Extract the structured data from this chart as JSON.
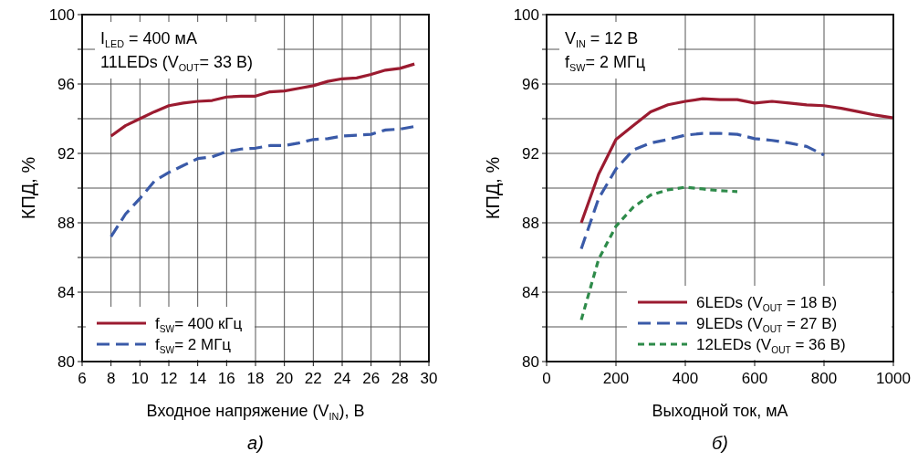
{
  "chart_data": [
    {
      "type": "line",
      "xlabel": "Входное напряжение (V$_{IN}$), В",
      "ylabel": "КПД, %",
      "annotations": [
        "I$_{LED}$ = 400 мА",
        "11LEDs (V$_{OUT}$= 33 В)",
        "а)"
      ],
      "xlim": [
        6,
        30
      ],
      "xticks": [
        6,
        8,
        10,
        12,
        14,
        16,
        18,
        20,
        22,
        24,
        26,
        28,
        30
      ],
      "ylim": [
        80,
        100
      ],
      "yticks": [
        80,
        {
          "value": 82,
          "label": null
        },
        84,
        {
          "value": 86,
          "label": null
        },
        88,
        {
          "value": 90,
          "label": null
        },
        92,
        {
          "value": 94,
          "label": null
        },
        96,
        {
          "value": 98,
          "label": null
        },
        100
      ],
      "grid": true,
      "legend": "bottom left",
      "x": [
        8,
        9,
        10,
        11,
        12,
        13,
        14,
        15,
        16,
        17,
        18,
        19,
        20,
        21,
        22,
        23,
        24,
        25,
        26,
        27,
        28,
        29
      ],
      "series": [
        {
          "name": "f$_{SW}$= 400 кГц",
          "color": "#9b1b30",
          "line_style": "solid",
          "values": [
            93.0,
            93.6,
            94.0,
            94.4,
            94.75,
            94.9,
            95.0,
            95.05,
            95.25,
            95.3,
            95.3,
            95.55,
            95.6,
            95.75,
            95.9,
            96.15,
            96.3,
            96.35,
            96.55,
            96.8,
            96.9,
            97.15
          ]
        },
        {
          "name": "f$_{SW}$= 2 МГц",
          "color": "#3a5aa8",
          "line_style": "dashed",
          "values": [
            87.2,
            88.5,
            89.4,
            90.4,
            90.9,
            91.3,
            91.7,
            91.8,
            92.1,
            92.25,
            92.3,
            92.45,
            92.45,
            92.6,
            92.8,
            92.85,
            93.0,
            93.05,
            93.1,
            93.35,
            93.4,
            93.55
          ]
        }
      ]
    },
    {
      "type": "line",
      "xlabel": "Выходной ток, мА",
      "ylabel": "КПД, %",
      "annotations": [
        "V$_{IN}$ = 12 В",
        "f$_{SW}$= 2 МГц",
        "б)"
      ],
      "xlim": [
        0,
        1000
      ],
      "xticks": [
        0,
        200,
        400,
        600,
        800,
        1000
      ],
      "ylim": [
        80,
        100
      ],
      "yticks": [
        80,
        {
          "value": 82,
          "label": null
        },
        84,
        {
          "value": 86,
          "label": null
        },
        88,
        {
          "value": 90,
          "label": null
        },
        92,
        {
          "value": 94,
          "label": null
        },
        96,
        {
          "value": 98,
          "label": null
        },
        100
      ],
      "grid": true,
      "legend": "bottom right",
      "series": [
        {
          "name": "6LEDs (V$_{OUT}$ = 18 В)",
          "color": "#9b1b30",
          "line_style": "solid",
          "x": [
            100,
            150,
            200,
            250,
            300,
            350,
            400,
            450,
            500,
            550,
            600,
            650,
            700,
            750,
            800,
            850,
            900,
            950,
            1000
          ],
          "values": [
            88.0,
            90.8,
            92.8,
            93.6,
            94.4,
            94.8,
            95.0,
            95.15,
            95.1,
            95.1,
            94.9,
            95.0,
            94.9,
            94.8,
            94.75,
            94.6,
            94.4,
            94.2,
            94.05
          ]
        },
        {
          "name": "9LEDs (V$_{OUT}$ = 27 В)",
          "color": "#3a5aa8",
          "line_style": "dashed",
          "x": [
            100,
            150,
            200,
            250,
            300,
            350,
            400,
            450,
            500,
            550,
            600,
            650,
            700,
            750,
            800
          ],
          "values": [
            86.5,
            89.4,
            91.1,
            92.2,
            92.6,
            92.8,
            93.05,
            93.15,
            93.15,
            93.1,
            92.85,
            92.75,
            92.6,
            92.4,
            91.9
          ]
        },
        {
          "name": "12LEDs (V$_{OUT}$ = 36 В)",
          "color": "#2e8b4a",
          "line_style": "dotted",
          "x": [
            100,
            150,
            200,
            250,
            300,
            350,
            400,
            450,
            500,
            550
          ],
          "values": [
            82.4,
            85.9,
            87.8,
            88.9,
            89.6,
            89.9,
            90.05,
            89.95,
            89.85,
            89.8
          ]
        }
      ]
    }
  ]
}
